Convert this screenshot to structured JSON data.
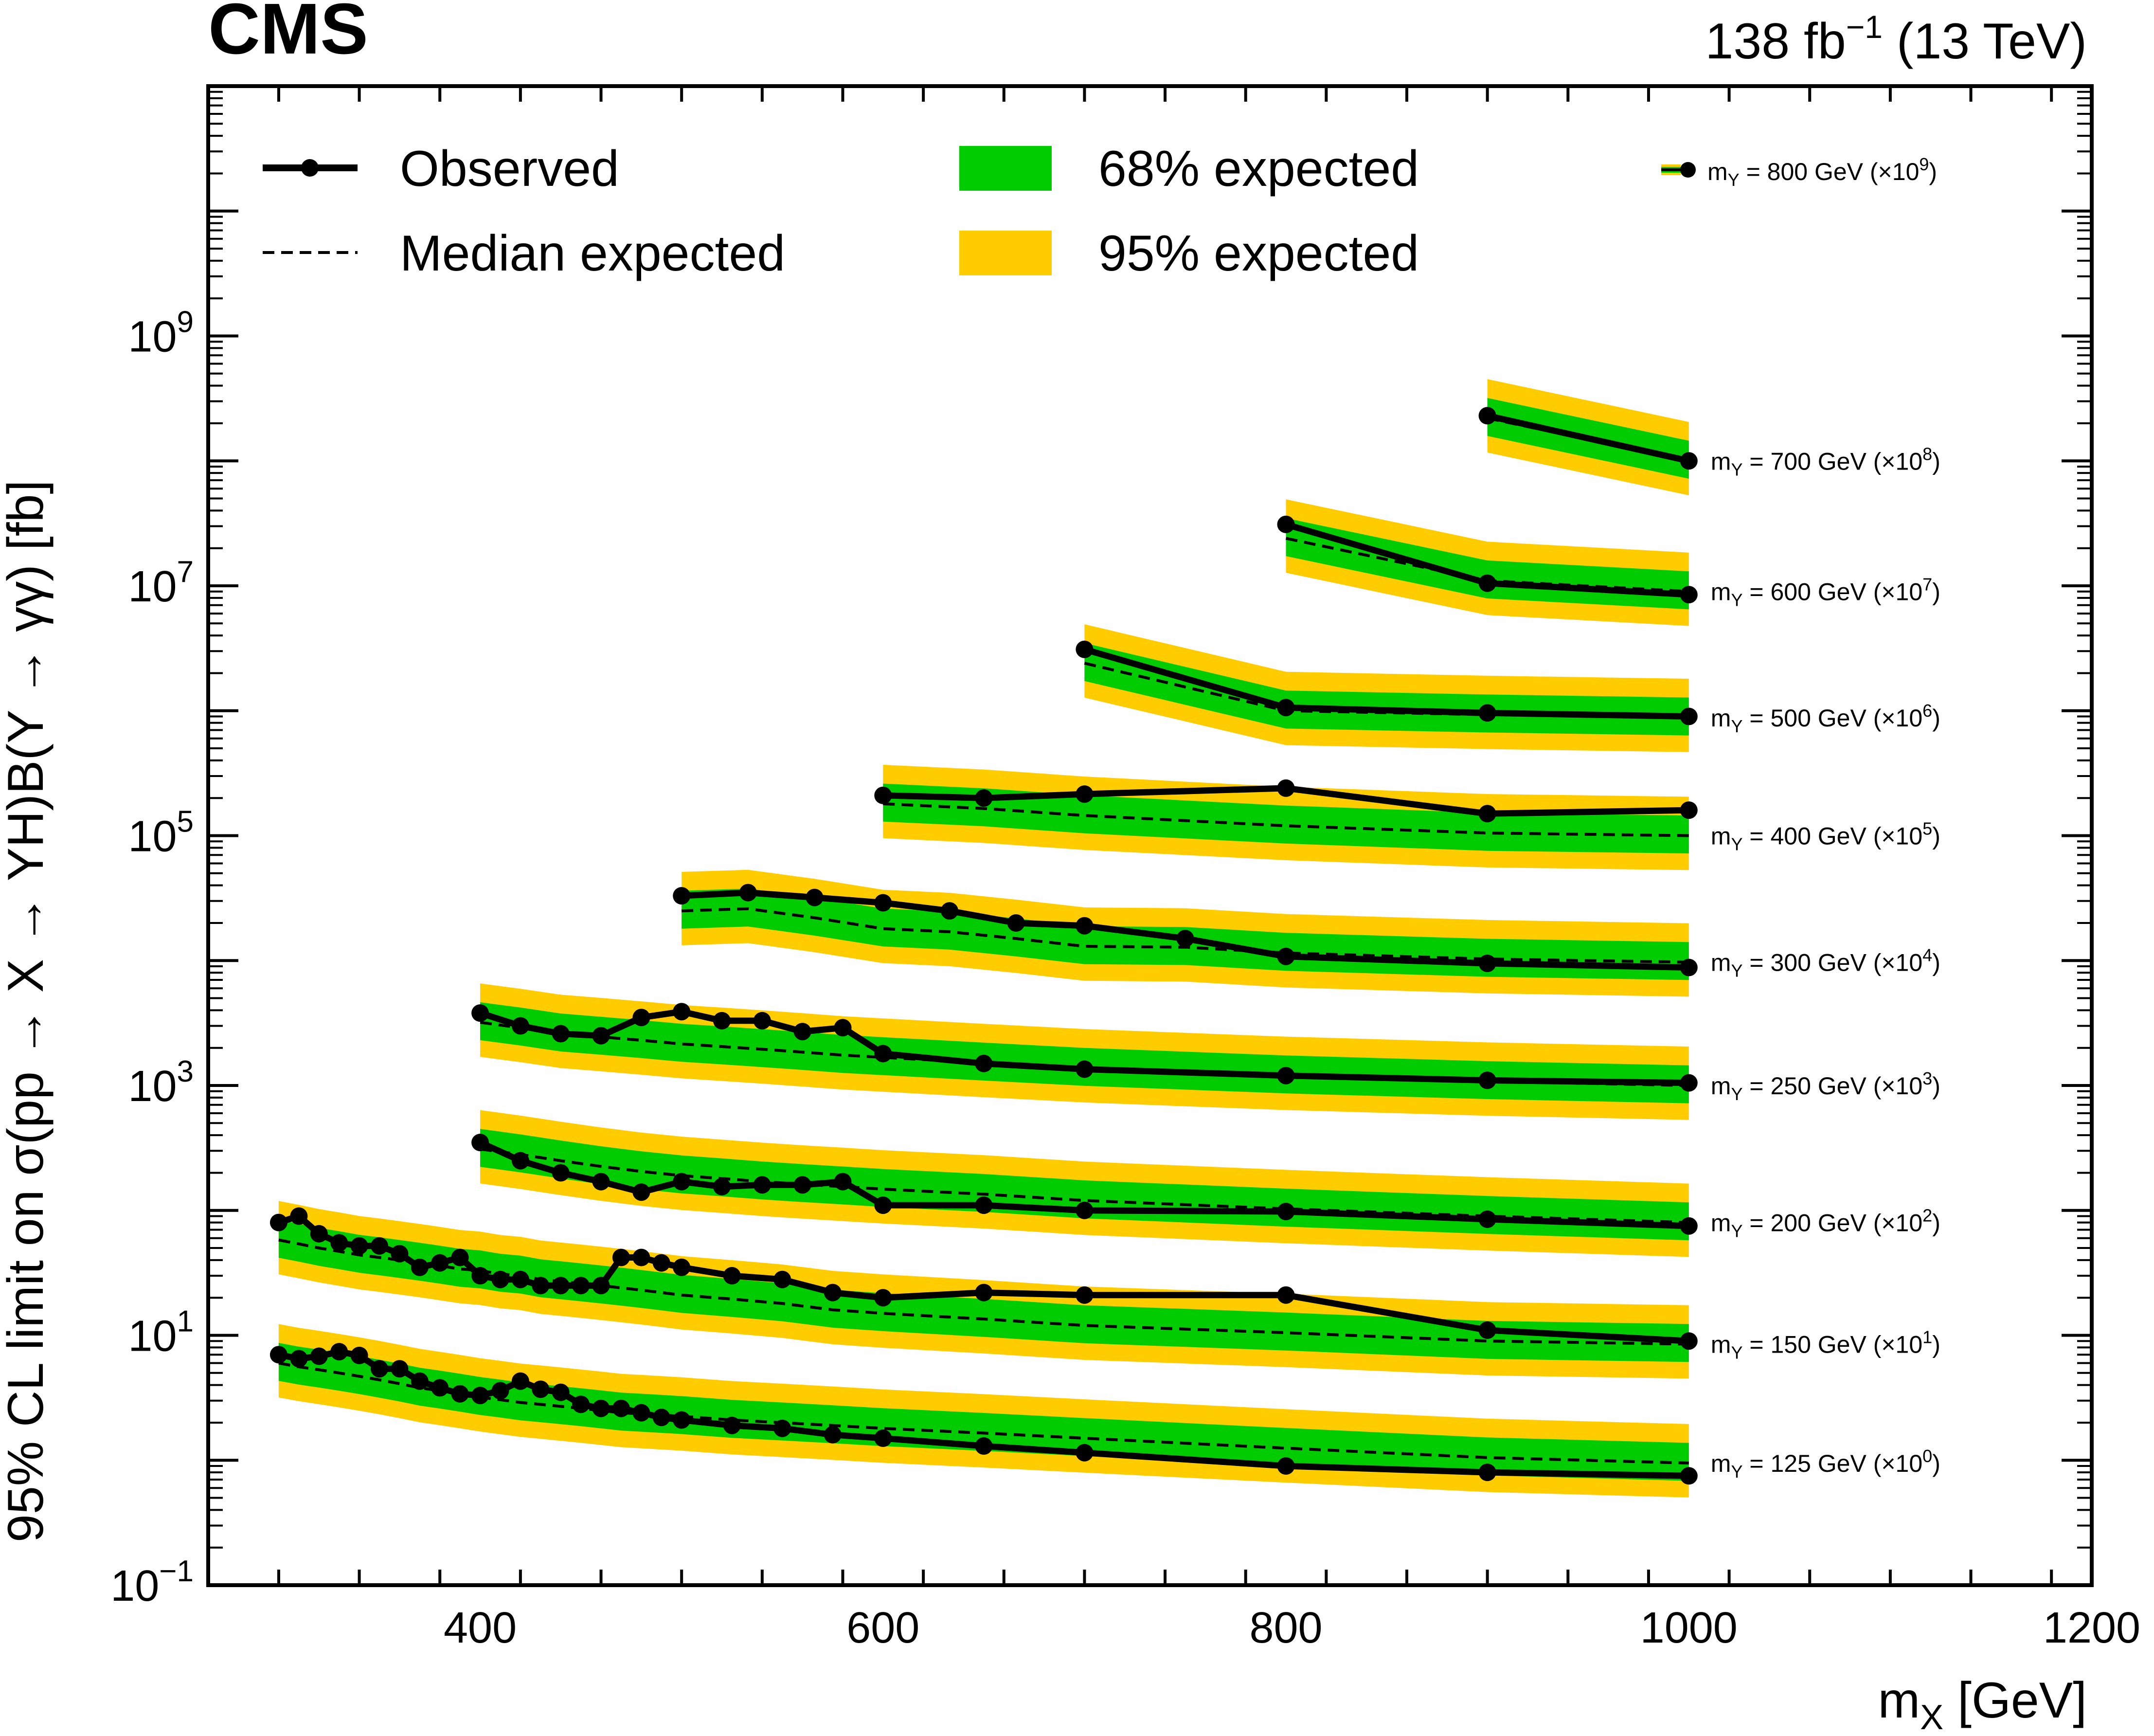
{
  "header": {
    "experiment": "CMS",
    "lumi": "138 fb",
    "lumi_exp": "−1",
    "energy": " (13 TeV)"
  },
  "chart_data": {
    "type": "line",
    "title": "",
    "xlabel": "m",
    "xlabel_sub": "X",
    "xlabel_unit": " [GeV]",
    "ylabel": "95% CL limit on σ(pp → X → YH)B(Y → γγ) [fb]",
    "xlim": [
      265,
      1200
    ],
    "ylim": [
      0.1,
      100000000000
    ],
    "yscale": "log",
    "x_ticks": [
      400,
      600,
      800,
      1000,
      1200
    ],
    "x_tick_labels": [
      "400",
      "600",
      "800",
      "1000",
      "1200"
    ],
    "y_ticks": [
      {
        "value": 0.1,
        "base": "10",
        "exp": "−1"
      },
      {
        "value": 10,
        "base": "10",
        "exp": "1"
      },
      {
        "value": 1000,
        "base": "10",
        "exp": "3"
      },
      {
        "value": 100000,
        "base": "10",
        "exp": "5"
      },
      {
        "value": 10000000,
        "base": "10",
        "exp": "7"
      },
      {
        "value": 1000000000,
        "base": "10",
        "exp": "9"
      }
    ],
    "legend": {
      "observed": "Observed",
      "median": "Median expected",
      "band68": "68% expected",
      "band95": "95% expected",
      "position": "top"
    },
    "colors": {
      "band68": "#00cc00",
      "band95": "#ffcc00",
      "line": "#000000"
    },
    "series": [
      {
        "label": "m",
        "label_sub": "Y",
        "label_rest": " = 125 GeV (×10",
        "label_exp": "0",
        "label_end": ")",
        "x": [
          300,
          310,
          320,
          330,
          340,
          350,
          360,
          370,
          380,
          390,
          400,
          410,
          420,
          430,
          440,
          450,
          460,
          470,
          480,
          490,
          500,
          525,
          550,
          575,
          600,
          650,
          700,
          800,
          900,
          1000
        ],
        "observed": [
          7,
          6.5,
          6.8,
          7.4,
          6.9,
          5.4,
          5.4,
          4.3,
          3.8,
          3.4,
          3.3,
          3.6,
          4.3,
          3.7,
          3.5,
          2.8,
          2.6,
          2.6,
          2.4,
          2.2,
          2.1,
          1.9,
          1.8,
          1.6,
          1.5,
          1.3,
          1.15,
          0.9,
          0.8,
          0.75
        ],
        "expected": [
          6.0,
          5.6,
          5.3,
          5.0,
          4.7,
          4.4,
          4.1,
          3.8,
          3.6,
          3.4,
          3.2,
          3.05,
          2.9,
          2.8,
          2.7,
          2.6,
          2.5,
          2.4,
          2.35,
          2.3,
          2.25,
          2.1,
          2.0,
          1.9,
          1.8,
          1.65,
          1.5,
          1.25,
          1.05,
          0.95
        ]
      },
      {
        "label": "m",
        "label_sub": "Y",
        "label_rest": " = 150 GeV (×10",
        "label_exp": "1",
        "label_end": ")",
        "x": [
          300,
          310,
          320,
          330,
          340,
          350,
          360,
          370,
          380,
          390,
          400,
          410,
          420,
          430,
          440,
          450,
          460,
          470,
          480,
          490,
          500,
          525,
          550,
          575,
          600,
          650,
          700,
          800,
          900,
          1000
        ],
        "observed": [
          80,
          90,
          65,
          55,
          52,
          52,
          45,
          35,
          38,
          42,
          30,
          28,
          28,
          25,
          25,
          25,
          25,
          42,
          42,
          38,
          35,
          30,
          28,
          22,
          20,
          22,
          21,
          21,
          11,
          9.0
        ],
        "expected": [
          58,
          54,
          50,
          47,
          44,
          42,
          40,
          38,
          36,
          34,
          33,
          31,
          30,
          28,
          27,
          26,
          25,
          24,
          23,
          22,
          21,
          19.5,
          18,
          16,
          15,
          13.5,
          12,
          10.5,
          9.0,
          8.5
        ]
      },
      {
        "label": "m",
        "label_sub": "Y",
        "label_rest": " = 200 GeV (×10",
        "label_exp": "2",
        "label_end": ")",
        "x": [
          400,
          420,
          440,
          460,
          480,
          500,
          520,
          540,
          560,
          580,
          600,
          650,
          700,
          800,
          900,
          1000
        ],
        "observed": [
          350,
          250,
          200,
          170,
          140,
          170,
          155,
          160,
          160,
          170,
          110,
          110,
          100,
          98,
          85,
          75
        ],
        "expected": [
          310,
          280,
          250,
          225,
          205,
          190,
          180,
          170,
          162,
          155,
          148,
          135,
          120,
          103,
          90,
          80
        ]
      },
      {
        "label": "m",
        "label_sub": "Y",
        "label_rest": " = 250 GeV (×10",
        "label_exp": "3",
        "label_end": ")",
        "x": [
          400,
          420,
          440,
          460,
          480,
          500,
          520,
          540,
          560,
          580,
          600,
          650,
          700,
          800,
          900,
          1000
        ],
        "observed": [
          3800,
          3000,
          2600,
          2500,
          3500,
          3900,
          3300,
          3300,
          2700,
          2900,
          1800,
          1500,
          1350,
          1200,
          1100,
          1050
        ],
        "expected": [
          3200,
          2900,
          2600,
          2450,
          2300,
          2150,
          2050,
          1950,
          1850,
          1750,
          1680,
          1520,
          1380,
          1200,
          1080,
          1000
        ]
      },
      {
        "label": "m",
        "label_sub": "Y",
        "label_rest": " = 300 GeV (×10",
        "label_exp": "4",
        "label_end": ")",
        "x": [
          500,
          533,
          566,
          600,
          633,
          666,
          700,
          750,
          800,
          900,
          1000
        ],
        "observed": [
          33000,
          35000,
          32000,
          29000,
          25000,
          20000,
          19000,
          15000,
          10800,
          9500,
          8800
        ],
        "expected": [
          25000,
          26000,
          22000,
          18000,
          17000,
          15000,
          13000,
          12800,
          11500,
          10300,
          9700
        ]
      },
      {
        "label": "m",
        "label_sub": "Y",
        "label_rest": " = 400 GeV (×10",
        "label_exp": "5",
        "label_end": ")",
        "x": [
          600,
          650,
          700,
          800,
          900,
          1000
        ],
        "observed": [
          210000,
          200000,
          215000,
          240000,
          150000,
          160000
        ],
        "expected": [
          180000,
          165000,
          145000,
          120000,
          105000,
          100000
        ]
      },
      {
        "label": "m",
        "label_sub": "Y",
        "label_rest": " = 500 GeV (×10",
        "label_exp": "6",
        "label_end": ")",
        "x": [
          700,
          800,
          900,
          1000
        ],
        "observed": [
          3100000,
          1060000,
          960000,
          900000
        ],
        "expected": [
          2400000,
          1000000,
          930000,
          880000
        ]
      },
      {
        "label": "m",
        "label_sub": "Y",
        "label_rest": " = 600 GeV (×10",
        "label_exp": "7",
        "label_end": ")",
        "x": [
          800,
          900,
          1000
        ],
        "observed": [
          31000000,
          10500000,
          8500000
        ],
        "expected": [
          24000000,
          11000000,
          9000000
        ]
      },
      {
        "label": "m",
        "label_sub": "Y",
        "label_rest": " = 700 GeV (×10",
        "label_exp": "8",
        "label_end": ")",
        "x": [
          900,
          1000
        ],
        "observed": [
          230000000,
          100000000
        ],
        "expected": [
          220000000,
          100000000
        ]
      },
      {
        "label": "m",
        "label_sub": "Y",
        "label_rest": " = 800 GeV (×10",
        "label_exp": "9",
        "label_end": ")",
        "x": [],
        "observed": [],
        "expected": []
      }
    ]
  }
}
